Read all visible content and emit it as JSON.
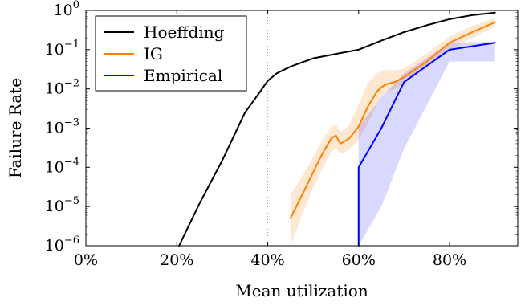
{
  "chart_data": {
    "type": "line",
    "xlabel": "Mean utilization",
    "ylabel": "Failure Rate",
    "xlim": [
      0,
      95
    ],
    "ylim": [
      1e-06,
      1
    ],
    "yscale": "log",
    "xticks": [
      0,
      20,
      40,
      60,
      80
    ],
    "xtick_labels": [
      "0%",
      "20%",
      "40%",
      "60%",
      "80%"
    ],
    "yticks": [
      1e-06,
      1e-05,
      0.0001,
      0.001,
      0.01,
      0.1,
      1
    ],
    "ytick_labels": [
      {
        "base": "10",
        "exp": "−6"
      },
      {
        "base": "10",
        "exp": "−5"
      },
      {
        "base": "10",
        "exp": "−4"
      },
      {
        "base": "10",
        "exp": "−3"
      },
      {
        "base": "10",
        "exp": "−2"
      },
      {
        "base": "10",
        "exp": "−1"
      },
      {
        "base": "10",
        "exp": "0"
      }
    ],
    "reference_lines_x": [
      40,
      55
    ],
    "grid": false,
    "legend_position": "top-left",
    "series": [
      {
        "name": "Hoeffding",
        "color": "#000000",
        "x": [
          20.5,
          25,
          30,
          35,
          38,
          40,
          42,
          45,
          50,
          55,
          60,
          65,
          70,
          75,
          80,
          85,
          90
        ],
        "y": [
          1e-06,
          1.2e-05,
          0.00015,
          0.0025,
          0.0075,
          0.016,
          0.025,
          0.037,
          0.06,
          0.078,
          0.1,
          0.17,
          0.28,
          0.42,
          0.6,
          0.76,
          0.88
        ]
      },
      {
        "name": "IG",
        "color": "#ff8000",
        "x": [
          45,
          48,
          50,
          52,
          54,
          55,
          56,
          58,
          60,
          62,
          64,
          65,
          66,
          68,
          70,
          75,
          80,
          85,
          90
        ],
        "y": [
          5e-06,
          2.5e-05,
          7.5e-05,
          0.00022,
          0.00055,
          0.00065,
          0.0004,
          0.00055,
          0.0011,
          0.0035,
          0.0085,
          0.011,
          0.013,
          0.015,
          0.02,
          0.05,
          0.15,
          0.28,
          0.5
        ],
        "band_upper": [
          2e-05,
          7e-05,
          0.00018,
          0.0005,
          0.0011,
          0.0012,
          0.0008,
          0.0012,
          0.004,
          0.014,
          0.025,
          0.028,
          0.03,
          0.03,
          0.033,
          0.08,
          0.22,
          0.4,
          0.65
        ],
        "band_lower": [
          1e-06,
          8e-06,
          3e-05,
          9e-05,
          0.00025,
          0.0003,
          0.00022,
          0.00028,
          0.0005,
          0.0013,
          0.004,
          0.006,
          0.008,
          0.01,
          0.014,
          0.035,
          0.1,
          0.2,
          0.38
        ]
      },
      {
        "name": "Empirical",
        "color": "#0000ff",
        "x": [
          60,
          60,
          65,
          70,
          80,
          90
        ],
        "y": [
          1e-06,
          0.0001,
          0.001,
          0.015,
          0.1,
          0.15
        ],
        "band_x": [
          60,
          65,
          70,
          80,
          90
        ],
        "band_upper": [
          0.0011,
          0.006,
          0.025,
          0.15,
          0.16
        ],
        "band_lower": [
          1e-06,
          1e-05,
          0.0003,
          0.05,
          0.05
        ]
      }
    ]
  }
}
